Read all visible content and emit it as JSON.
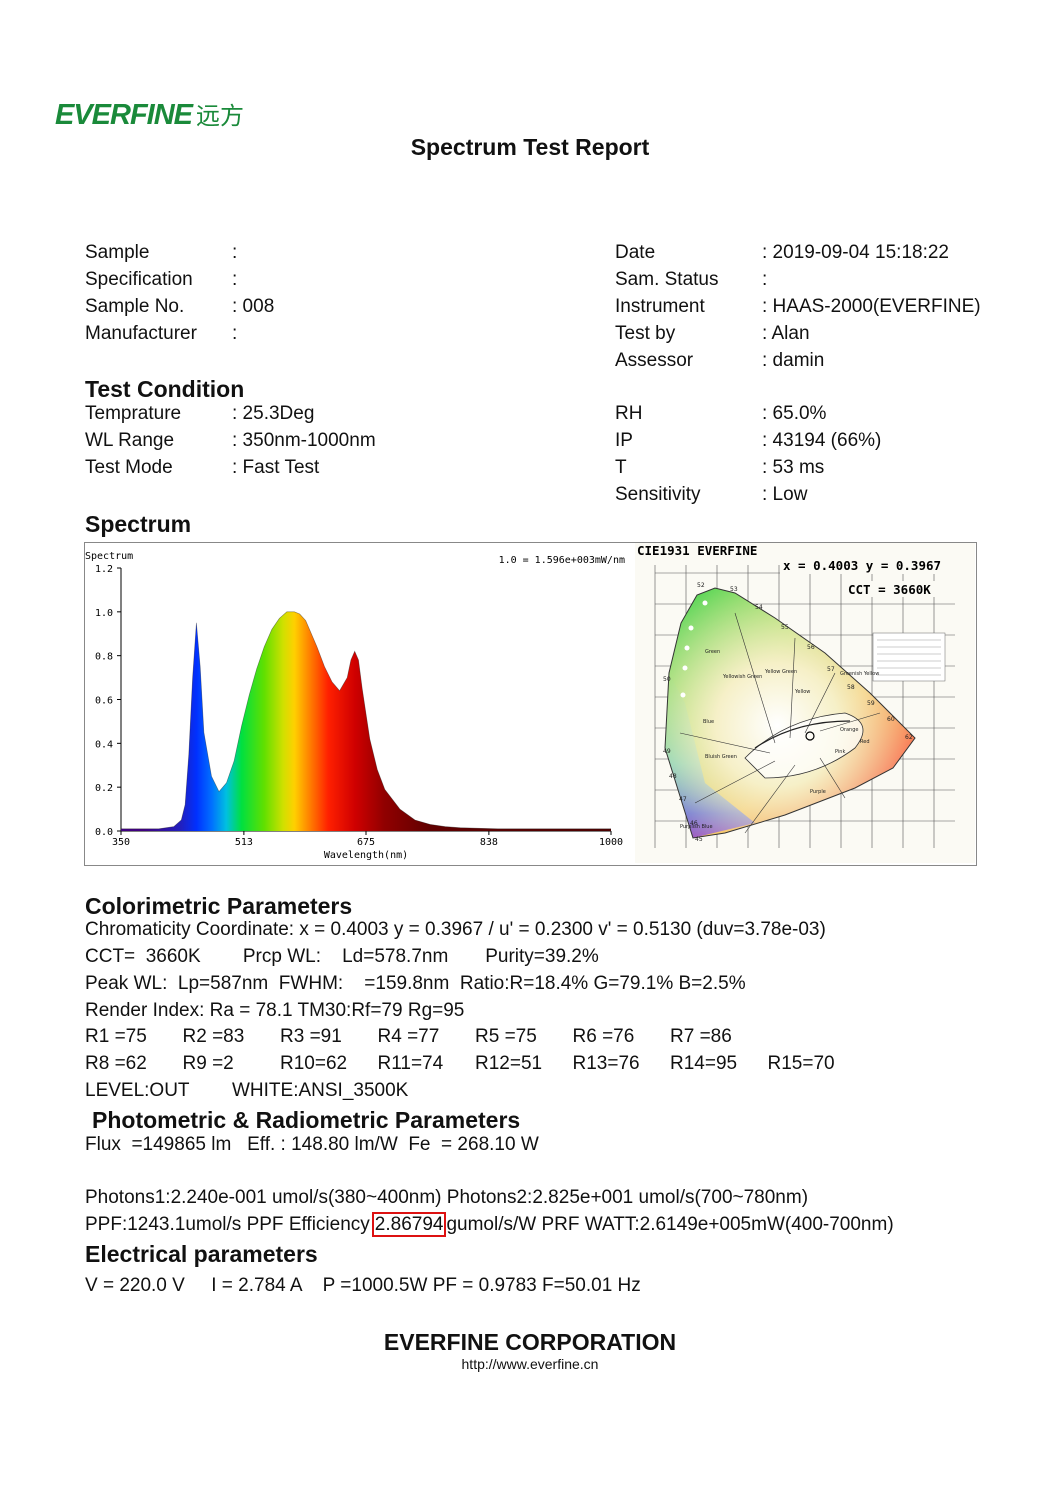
{
  "header": {
    "logo_text": "EVERFINE",
    "logo_cn": "远方",
    "title": "Spectrum Test Report"
  },
  "info_left": [
    {
      "label": "Sample",
      "value": ":"
    },
    {
      "label": "Specification",
      "value": ":"
    },
    {
      "label": "Sample No.",
      "value": ": 008"
    },
    {
      "label": "Manufacturer",
      "value": ":"
    }
  ],
  "info_right": [
    {
      "label": "Date",
      "value": ": 2019-09-04 15:18:22"
    },
    {
      "label": "Sam. Status",
      "value": ":"
    },
    {
      "label": "Instrument",
      "value": ": HAAS-2000(EVERFINE)"
    },
    {
      "label": "Test by",
      "value": ": Alan"
    },
    {
      "label": "Assessor",
      "value": ": damin"
    }
  ],
  "test_condition": {
    "heading": "Test Condition",
    "left": [
      {
        "label": "Temprature",
        "value": ": 25.3Deg"
      },
      {
        "label": "WL Range",
        "value": ": 350nm-1000nm"
      },
      {
        "label": "Test Mode",
        "value": ": Fast Test"
      }
    ],
    "right": [
      {
        "label": "RH",
        "value": ": 65.0%"
      },
      {
        "label": "IP",
        "value": ": 43194 (66%)"
      },
      {
        "label": "T",
        "value": ": 53 ms"
      },
      {
        "label": "Sensitivity",
        "value": ": Low"
      }
    ]
  },
  "spectrum": {
    "heading": "Spectrum",
    "cie_title": "CIE1931   EVERFINE",
    "cie_coord": "x = 0.4003  y = 0.3967",
    "cie_cct": "CCT = 3660K",
    "cie_labels": [
      "52",
      "53",
      "54",
      "55",
      "56",
      "57",
      "58",
      "59",
      "60",
      "62",
      "50",
      "49",
      "48",
      "47",
      "46",
      "45"
    ],
    "cie_region_names": [
      "Yellowish Green",
      "Yellow Green",
      "Greenish Yellow",
      "Yellow",
      "Orange",
      "Red",
      "Pink",
      "Purple",
      "Blue",
      "Green",
      "Bluish Green",
      "Purplish Blue"
    ]
  },
  "chart_data": {
    "type": "area",
    "title": "Spectrum",
    "scale_note": "1.0 = 1.596e+003mW/nm",
    "xlabel": "Wavelength(nm)",
    "ylabel": "",
    "xlim": [
      350,
      1000
    ],
    "ylim": [
      0,
      1.2
    ],
    "x_ticks": [
      "350",
      "513",
      "675",
      "838",
      "1000"
    ],
    "y_ticks": [
      "0.0",
      "0.2",
      "0.4",
      "0.6",
      "0.8",
      "1.0",
      "1.2"
    ],
    "series": [
      {
        "x": [
          350,
          380,
          400,
          420,
          430,
          435,
          440,
          445,
          450,
          455,
          460,
          470,
          480,
          490,
          500,
          510,
          520,
          530,
          540,
          550,
          560,
          570,
          580,
          587,
          595,
          600,
          610,
          620,
          630,
          640,
          650,
          655,
          660,
          665,
          670,
          680,
          690,
          700,
          720,
          740,
          760,
          780,
          800,
          850,
          900,
          1000
        ],
        "values": [
          0.01,
          0.01,
          0.01,
          0.02,
          0.05,
          0.12,
          0.35,
          0.7,
          0.95,
          0.75,
          0.45,
          0.25,
          0.18,
          0.22,
          0.32,
          0.48,
          0.62,
          0.74,
          0.84,
          0.92,
          0.97,
          1.0,
          1.0,
          0.99,
          0.96,
          0.92,
          0.84,
          0.75,
          0.68,
          0.64,
          0.7,
          0.78,
          0.82,
          0.78,
          0.65,
          0.42,
          0.28,
          0.19,
          0.1,
          0.05,
          0.03,
          0.02,
          0.015,
          0.01,
          0.01,
          0.01
        ]
      }
    ]
  },
  "colorimetric": {
    "heading": "Colorimetric Parameters",
    "lines": [
      "Chromaticity Coordinate: x = 0.4003 y = 0.3967 / u' = 0.2300 v' = 0.5130 (duv=3.78e-03)",
      "CCT=  3660K        Prcp WL:    Ld=578.7nm       Purity=39.2%",
      "Peak WL:  Lp=587nm  FWHM:    =159.8nm  Ratio:R=18.4% G=79.1% B=2.5%",
      "Render Index: Ra = 78.1 TM30:Rf=79 Rg=95"
    ],
    "r_row1": [
      "R1 =75",
      "R2 =83",
      "R3 =91",
      "R4 =77",
      "R5 =75",
      "R6 =76",
      "R7 =86"
    ],
    "r_row2": [
      "R8 =62",
      "R9 =2",
      "R10=62",
      "R11=74",
      "R12=51",
      "R13=76",
      "R14=95",
      "R15=70"
    ],
    "level": "LEVEL:OUT",
    "white": "WHITE:ANSI_3500K"
  },
  "photometric": {
    "heading": "Photometric & Radiometric Parameters",
    "flux_line": "Flux  =149865 lm   Eff. : 148.80 lm/W  Fe  = 268.10 W",
    "photons_line": "Photons1:2.240e-001 umol/s(380~400nm) Photons2:2.825e+001 umol/s(700~780nm)",
    "ppf_prefix": "PPF:1243.1umol/s  PPF Efficiency",
    "ppf_eff": "2.86794",
    "ppf_suffix": "gumol/s/W  PRF WATT:2.6149e+005mW(400-700nm)"
  },
  "electrical": {
    "heading": "Electrical parameters",
    "line": "V = 220.0 V     I = 2.784 A    P =1000.5W PF = 0.9783 F=50.01 Hz"
  },
  "footer": {
    "company": "EVERFINE CORPORATION",
    "url": "http://www.everfine.cn"
  }
}
